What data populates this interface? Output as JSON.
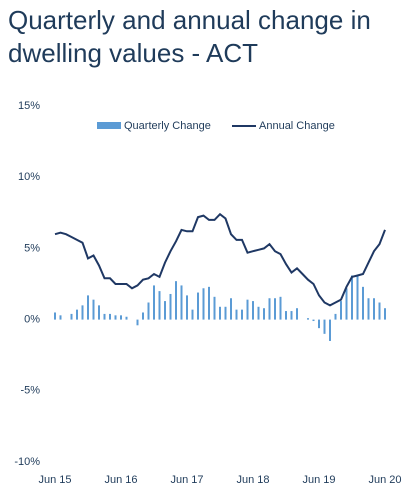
{
  "chart_data": {
    "type": "bar-line",
    "title": "Quarterly and annual change in dwelling values - ACT",
    "categories": [
      "Jun 15",
      null,
      null,
      null,
      null,
      null,
      null,
      null,
      null,
      null,
      null,
      null,
      "Jun 16",
      null,
      null,
      null,
      null,
      null,
      null,
      null,
      null,
      null,
      null,
      null,
      "Jun 17",
      null,
      null,
      null,
      null,
      null,
      null,
      null,
      null,
      null,
      null,
      null,
      "Jun 18",
      null,
      null,
      null,
      null,
      null,
      null,
      null,
      null,
      null,
      null,
      null,
      "Jun 19",
      null,
      null,
      null,
      null,
      null,
      null,
      null,
      null,
      null,
      null,
      null,
      "Jun 20"
    ],
    "series": [
      {
        "name": "Quarterly Change",
        "type": "bar",
        "color": "#5b9bd5",
        "values": [
          0.5,
          0.3,
          0,
          0.4,
          0.7,
          1.0,
          1.7,
          1.4,
          1.0,
          0.4,
          0.4,
          0.3,
          0.3,
          0.2,
          0,
          -0.4,
          0.5,
          1.2,
          2.4,
          2.0,
          1.3,
          1.8,
          2.7,
          2.4,
          1.7,
          0.7,
          1.9,
          2.2,
          2.3,
          1.6,
          0.9,
          0.9,
          1.5,
          0.7,
          0.7,
          1.4,
          1.3,
          0.9,
          0.8,
          1.5,
          1.5,
          1.6,
          0.6,
          0.6,
          0.8,
          0,
          0.1,
          -0.1,
          -0.6,
          -1.0,
          -1.5,
          0.4,
          1.3,
          2.2,
          3.1,
          3.1,
          2.3,
          1.5,
          1.5,
          1.2,
          0.8
        ]
      },
      {
        "name": "Annual Change",
        "type": "line",
        "color": "#1f3864",
        "values": [
          6.0,
          6.1,
          6.0,
          5.8,
          5.6,
          5.4,
          4.3,
          4.5,
          3.8,
          2.9,
          2.9,
          2.5,
          2.5,
          2.5,
          2.2,
          2.4,
          2.8,
          2.9,
          3.2,
          3.0,
          4.0,
          4.8,
          5.5,
          6.3,
          6.2,
          6.2,
          7.2,
          7.3,
          7.0,
          7.0,
          7.4,
          7.1,
          6.0,
          5.6,
          5.6,
          4.7,
          4.8,
          4.9,
          5.0,
          5.3,
          4.8,
          4.6,
          3.9,
          3.3,
          3.6,
          3.2,
          2.8,
          2.5,
          1.7,
          1.2,
          1.0,
          1.2,
          1.4,
          2.3,
          3.0,
          3.1,
          3.2,
          4.0,
          4.8,
          5.3,
          6.3
        ]
      }
    ],
    "ylim": [
      -10,
      15
    ],
    "yticks": [
      {
        "value": -10,
        "label": "-10%"
      },
      {
        "value": -5,
        "label": "-5%"
      },
      {
        "value": 0,
        "label": "0%"
      },
      {
        "value": 5,
        "label": "5%"
      },
      {
        "value": 10,
        "label": "10%"
      },
      {
        "value": 15,
        "label": "15%"
      }
    ],
    "grid": false,
    "legend": "top"
  }
}
